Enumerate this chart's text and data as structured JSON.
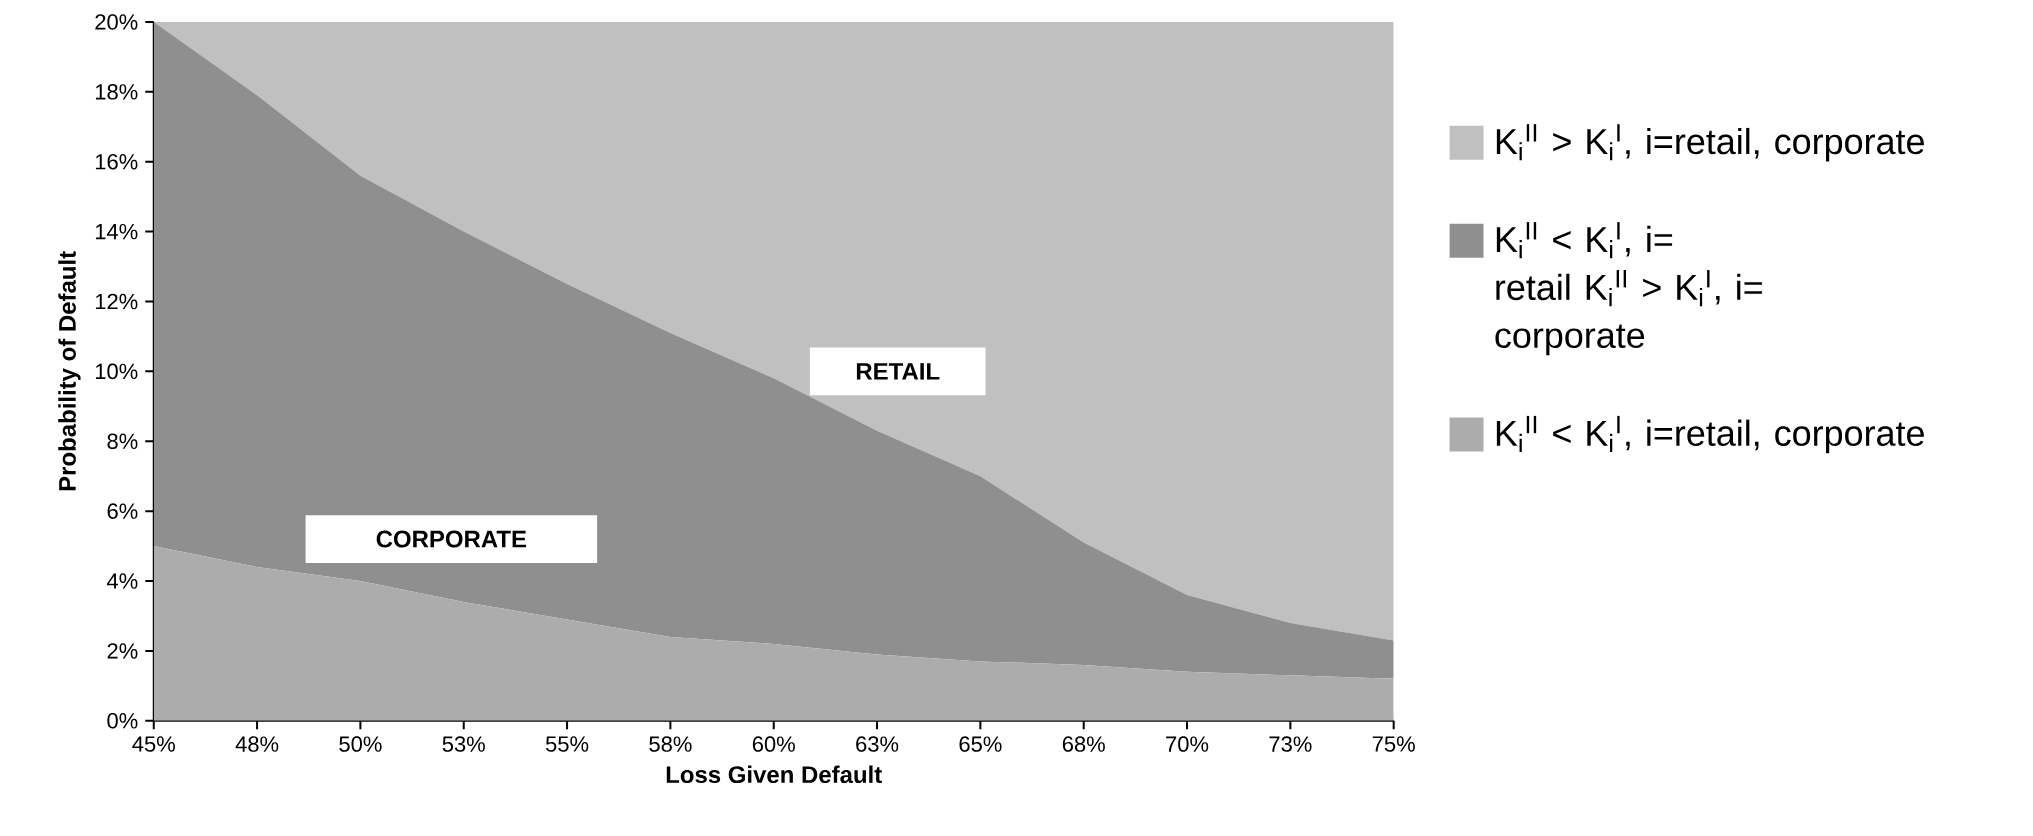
{
  "chart_data": {
    "type": "area",
    "stacked": true,
    "xlabel": "Loss Given Default",
    "ylabel": "Probability of Default",
    "x": [
      45,
      47.5,
      50,
      52.5,
      55,
      57.5,
      60,
      62.5,
      65,
      67.5,
      70,
      72.5,
      75
    ],
    "series": [
      {
        "name": "K$_{i}$$^{II}$ < K$_{i}$$^{I}$, i=retail, corporate",
        "color": "#acacac",
        "values": [
          5.0,
          4.4,
          4.0,
          3.4,
          2.9,
          2.4,
          2.2,
          1.9,
          1.7,
          1.6,
          1.4,
          1.3,
          1.2
        ]
      },
      {
        "name": "K$_{i}$$^{II}$ < K$_{i}$$^{I}$, i= retail K$_{i}$$^{II}$ > K$_{i}$$^{I}$, i= corporate",
        "color": "#8f8f8f",
        "values": [
          15.0,
          13.5,
          11.6,
          10.6,
          9.6,
          8.7,
          7.6,
          6.4,
          5.3,
          3.5,
          2.2,
          1.5,
          1.1
        ]
      },
      {
        "name": "K$_{i}$$^{II}$ > K$_{i}$$^{I}$, i=retail, corporate",
        "color": "#c0c0c0",
        "values": [
          0,
          2.1,
          4.4,
          6.0,
          7.5,
          8.9,
          10.2,
          11.7,
          13.0,
          14.9,
          16.4,
          17.2,
          17.7
        ]
      }
    ],
    "xlim": [
      45,
      75
    ],
    "xticks": [
      {
        "value": 45,
        "label": "45%"
      },
      {
        "value": 47.5,
        "label": "48%"
      },
      {
        "value": 50,
        "label": "50%"
      },
      {
        "value": 52.5,
        "label": "53%"
      },
      {
        "value": 55,
        "label": "55%"
      },
      {
        "value": 57.5,
        "label": "58%"
      },
      {
        "value": 60,
        "label": "60%"
      },
      {
        "value": 62.5,
        "label": "63%"
      },
      {
        "value": 65,
        "label": "65%"
      },
      {
        "value": 67.5,
        "label": "68%"
      },
      {
        "value": 70,
        "label": "70%"
      },
      {
        "value": 72.5,
        "label": "73%"
      },
      {
        "value": 75,
        "label": "75%"
      }
    ],
    "ylim": [
      0,
      20
    ],
    "yticks": [
      {
        "value": 0,
        "label": "0%"
      },
      {
        "value": 2,
        "label": "2%"
      },
      {
        "value": 4,
        "label": "4%"
      },
      {
        "value": 6,
        "label": "6%"
      },
      {
        "value": 8,
        "label": "8%"
      },
      {
        "value": 10,
        "label": "10%"
      },
      {
        "value": 12,
        "label": "12%"
      },
      {
        "value": 14,
        "label": "14%"
      },
      {
        "value": 16,
        "label": "16%"
      },
      {
        "value": 18,
        "label": "18%"
      },
      {
        "value": 20,
        "label": "20%"
      }
    ],
    "annotations": [
      "RETAIL",
      "CORPORATE"
    ],
    "legend": "right",
    "grid": false
  }
}
